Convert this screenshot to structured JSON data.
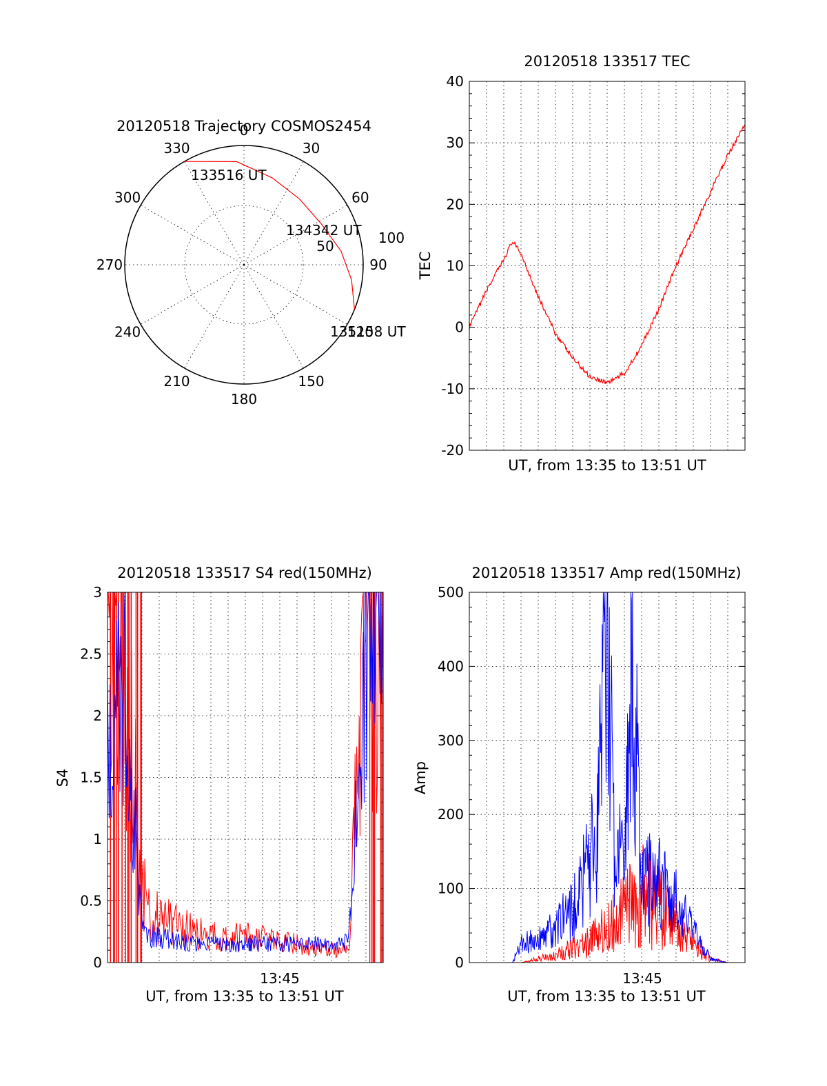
{
  "colors": {
    "red": "#ff0000",
    "blue": "#0000ff",
    "axis": "#000000"
  },
  "chart_data": [
    {
      "type": "polar",
      "title": "20120518 Trajectory COSMOS2454",
      "azimuth_labels": [
        "0",
        "30",
        "60",
        "90",
        "120",
        "150",
        "180",
        "210",
        "240",
        "270",
        "300",
        "330"
      ],
      "radial_labels": [
        "50",
        "100"
      ],
      "trajectory": {
        "color": "red",
        "points": [
          {
            "az": 330,
            "r": 90
          },
          {
            "az": 356,
            "r": 78
          },
          {
            "az": 18,
            "r": 69
          },
          {
            "az": 40,
            "r": 65
          },
          {
            "az": 62,
            "r": 66
          },
          {
            "az": 82,
            "r": 74
          },
          {
            "az": 98,
            "r": 82
          },
          {
            "az": 112,
            "r": 90
          }
        ],
        "annotations": [
          {
            "text": "133516 UT"
          },
          {
            "text": "134342 UT"
          },
          {
            "text": "135158 UT"
          }
        ]
      }
    },
    {
      "type": "line",
      "title": "20120518 133517 TEC",
      "xlabel": "UT, from 13:35 to 13:51 UT",
      "ylabel": "TEC",
      "xlim": [
        "13:35",
        "13:51"
      ],
      "ylim": [
        -20,
        40
      ],
      "yticks": [
        "-20",
        "-10",
        "0",
        "10",
        "20",
        "30",
        "40"
      ],
      "series": [
        {
          "color": "red",
          "x": [
            "13:35",
            "13:36",
            "13:37",
            "13:37:30",
            "13:38",
            "13:39",
            "13:40",
            "13:41",
            "13:42",
            "13:43",
            "13:44",
            "13:45",
            "13:46",
            "13:47",
            "13:48",
            "13:49",
            "13:50",
            "13:51"
          ],
          "y": [
            0,
            6,
            11,
            14,
            12,
            5,
            -1,
            -5,
            -8,
            -9,
            -7.5,
            -3,
            3,
            10,
            16,
            22,
            28,
            33
          ]
        }
      ]
    },
    {
      "type": "line",
      "title": "20120518 133517 S4 red(150MHz)",
      "xlabel": "UT, from 13:35 to 13:51 UT",
      "ylabel": "S4",
      "xlim": [
        "13:35",
        "13:51"
      ],
      "ylim": [
        0,
        3
      ],
      "yticks": [
        "0",
        "0.5",
        "1",
        "1.5",
        "2",
        "2.5",
        "3"
      ],
      "xticks": [
        "13:45"
      ],
      "series": [
        {
          "color": "red",
          "x": [
            "13:35",
            "13:36",
            "13:37",
            "13:37:30",
            "13:38",
            "13:40",
            "13:42",
            "13:44",
            "13:46",
            "13:48",
            "13:49",
            "13:50",
            "13:51"
          ],
          "y": [
            3,
            2.5,
            0.6,
            0.4,
            0.35,
            0.25,
            0.2,
            0.2,
            0.15,
            0.1,
            0.1,
            3,
            3
          ]
        },
        {
          "color": "blue",
          "x": [
            "13:35",
            "13:36",
            "13:37",
            "13:37:30",
            "13:38",
            "13:40",
            "13:42",
            "13:44",
            "13:46",
            "13:48",
            "13:49",
            "13:50",
            "13:51"
          ],
          "y": [
            1.8,
            2.2,
            0.3,
            0.22,
            0.2,
            0.15,
            0.15,
            0.15,
            0.15,
            0.15,
            0.2,
            2.5,
            3
          ]
        }
      ]
    },
    {
      "type": "line",
      "title": "20120518 133517 Amp red(150MHz)",
      "xlabel": "UT, from 13:35 to 13:51 UT",
      "ylabel": "Amp",
      "xlim": [
        "13:35",
        "13:51"
      ],
      "ylim": [
        0,
        500
      ],
      "yticks": [
        "0",
        "100",
        "200",
        "300",
        "400",
        "500"
      ],
      "xticks": [
        "13:45"
      ],
      "series": [
        {
          "color": "red",
          "x": [
            "13:35",
            "13:38",
            "13:39",
            "13:40",
            "13:41",
            "13:42",
            "13:43",
            "13:44",
            "13:45",
            "13:46",
            "13:47",
            "13:48",
            "13:49",
            "13:50",
            "13:51"
          ],
          "y": [
            0,
            0,
            5,
            10,
            20,
            30,
            45,
            70,
            90,
            75,
            50,
            25,
            5,
            0,
            0
          ]
        },
        {
          "color": "blue",
          "x": [
            "13:35",
            "13:37:30",
            "13:38",
            "13:39",
            "13:40",
            "13:41",
            "13:42",
            "13:42:30",
            "13:43",
            "13:43:30",
            "13:44",
            "13:44:30",
            "13:45",
            "13:46",
            "13:47",
            "13:48",
            "13:49",
            "13:50",
            "13:51"
          ],
          "y": [
            0,
            0,
            25,
            30,
            50,
            70,
            140,
            210,
            440,
            90,
            200,
            410,
            120,
            110,
            80,
            40,
            5,
            0,
            0
          ]
        }
      ]
    }
  ]
}
